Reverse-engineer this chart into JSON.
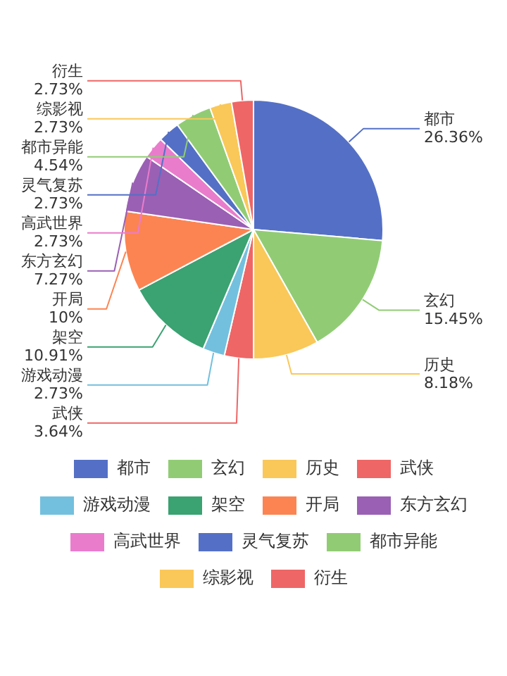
{
  "chart_data": {
    "type": "pie",
    "categories": [
      "都市",
      "玄幻",
      "历史",
      "武侠",
      "游戏动漫",
      "架空",
      "开局",
      "东方玄幻",
      "高武世界",
      "灵气复苏",
      "都市异能",
      "综影视",
      "衍生"
    ],
    "values": [
      26.36,
      15.45,
      8.18,
      3.64,
      2.73,
      10.91,
      10,
      7.27,
      2.73,
      2.73,
      4.54,
      2.73,
      2.73
    ],
    "value_labels": [
      "26.36%",
      "15.45%",
      "8.18%",
      "3.64%",
      "2.73%",
      "10.91%",
      "10%",
      "7.27%",
      "2.73%",
      "2.73%",
      "4.54%",
      "2.73%",
      "2.73%"
    ],
    "colors": [
      "#5470c6",
      "#91cc75",
      "#fac858",
      "#ee6666",
      "#73c0de",
      "#3ba272",
      "#fc8452",
      "#9a60b4",
      "#ea7ccc",
      "#5470c6",
      "#91cc75",
      "#fac858",
      "#ee6666"
    ],
    "legend": "bottom"
  }
}
